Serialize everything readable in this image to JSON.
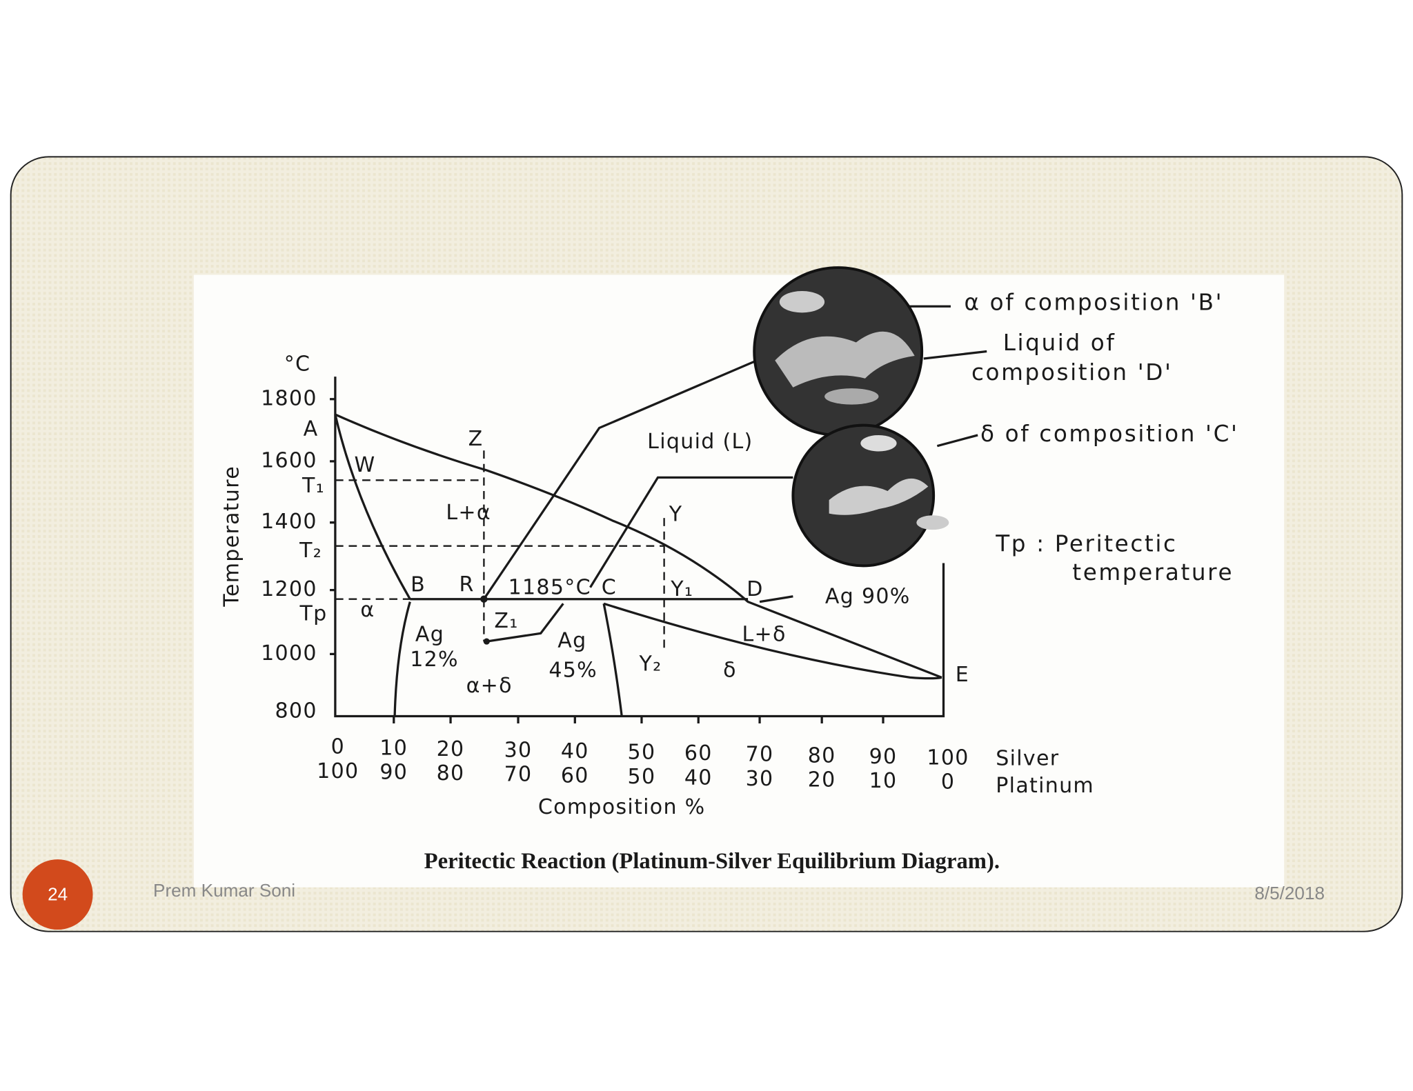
{
  "slide": {
    "number": "24",
    "author": "Prem Kumar Soni",
    "date": "8/5/2018"
  },
  "diagram": {
    "caption": "Peritectic Reaction (Platinum-Silver Equilibrium Diagram).",
    "y_axis": {
      "unit": "°C",
      "title": "Temperature",
      "ticks": [
        1800,
        1600,
        1400,
        1200,
        1000,
        800
      ]
    },
    "x_axis": {
      "title": "Composition %",
      "silver_label": "Silver",
      "platinum_label": "Platinum",
      "silver_ticks": [
        0,
        10,
        20,
        30,
        40,
        50,
        60,
        70,
        80,
        90,
        100
      ],
      "platinum_ticks": [
        100,
        90,
        80,
        70,
        60,
        50,
        40,
        30,
        20,
        10,
        0
      ]
    },
    "levels": [
      "T₁",
      "T₂",
      "Tp"
    ],
    "labels": [
      "A",
      "W",
      "Z",
      "L+α",
      "R",
      "B",
      "1185°C",
      "C",
      "Liquid (L)",
      "Y",
      "Y₁",
      "D",
      "Ag 90%",
      "α",
      "Z₁",
      "Ag",
      "12%",
      "Ag",
      "45%",
      "Y₂",
      "α+δ",
      "δ",
      "L+δ",
      "E"
    ],
    "callouts": [
      "α of composition 'B'",
      "Liquid of",
      "composition 'D'",
      "δ of composition 'C'",
      "Tp : Peritectic",
      "temperature"
    ]
  }
}
